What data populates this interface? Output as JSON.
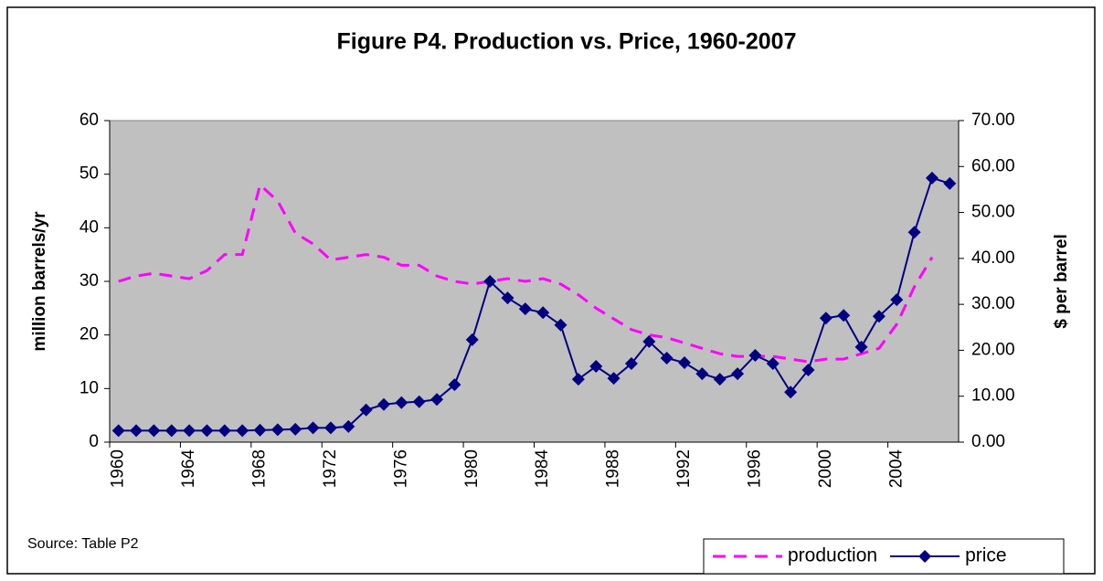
{
  "chart_data": {
    "type": "line",
    "title": "Figure P4. Production vs. Price, 1960-2007",
    "y_label": "million barrels/yr",
    "y2_label": "$ per barrel",
    "annotation": "Source: Table P2",
    "categories": [
      "1960",
      null,
      null,
      null,
      "1964",
      null,
      null,
      null,
      "1968",
      null,
      null,
      null,
      "1972",
      null,
      null,
      null,
      "1976",
      null,
      null,
      null,
      "1980",
      null,
      null,
      null,
      "1984",
      null,
      null,
      null,
      "1988",
      null,
      null,
      null,
      "1992",
      null,
      null,
      null,
      "1996",
      null,
      null,
      null,
      "2000",
      null,
      null,
      null,
      "2004",
      null,
      null,
      null
    ],
    "series": [
      {
        "name": "production",
        "color": "#ff00ff",
        "dash": true,
        "axis": "y",
        "values": [
          30,
          31,
          31.5,
          31,
          30.5,
          32,
          35,
          35,
          48,
          45,
          39,
          37,
          34,
          34.5,
          35,
          34.5,
          33,
          33,
          31,
          30,
          29.5,
          30,
          30.5,
          30,
          30.5,
          29.5,
          27.5,
          25,
          23,
          21,
          20,
          19.5,
          18.5,
          17.5,
          16.5,
          16,
          16,
          16,
          15.5,
          15,
          15.5,
          15.5,
          16.5,
          17.5,
          22,
          29,
          34.5,
          null
        ]
      },
      {
        "name": "price",
        "color": "#000080",
        "dash": false,
        "marker": "diamond",
        "axis": "y2",
        "values": [
          2.5,
          2.5,
          2.5,
          2.5,
          2.5,
          2.5,
          2.5,
          2.5,
          2.6,
          2.7,
          2.8,
          3.1,
          3.1,
          3.4,
          7.0,
          8.2,
          8.6,
          8.8,
          9.3,
          12.5,
          22.3,
          35.0,
          31.4,
          29.0,
          28.2,
          25.5,
          13.7,
          16.5,
          13.9,
          17.1,
          21.9,
          18.3,
          17.3,
          14.9,
          13.7,
          14.9,
          18.9,
          17.1,
          10.9,
          15.7,
          27.0,
          27.6,
          20.7,
          27.4,
          31.0,
          45.7,
          57.5,
          56.3
        ]
      }
    ],
    "ylim": [
      0,
      60
    ],
    "yticks": [
      0,
      10,
      20,
      30,
      40,
      50,
      60
    ],
    "y2lim": [
      0,
      70
    ],
    "y2ticks": [
      {
        "value": 0,
        "label": "0.00"
      },
      {
        "value": 10,
        "label": "10.00"
      },
      {
        "value": 20,
        "label": "20.00"
      },
      {
        "value": 30,
        "label": "30.00"
      },
      {
        "value": 40,
        "label": "40.00"
      },
      {
        "value": 50,
        "label": "50.00"
      },
      {
        "value": 60,
        "label": "60.00"
      },
      {
        "value": 70,
        "label": "70.00"
      }
    ],
    "plot_background": "#c0c0c0",
    "legend": "lower right"
  }
}
